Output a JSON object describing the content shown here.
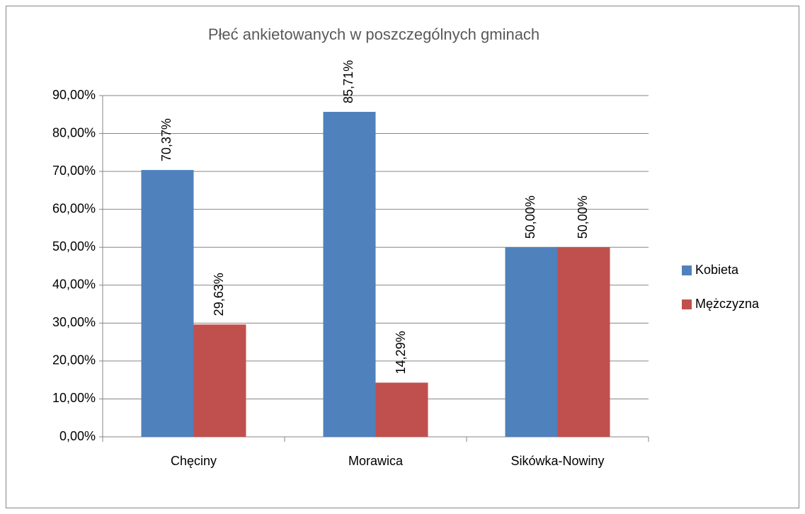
{
  "chart_data": {
    "type": "bar",
    "title": "Płeć ankietowanych w poszczególnych gminach",
    "categories": [
      "Chęciny",
      "Morawica",
      "Sikówka-Nowiny"
    ],
    "series": [
      {
        "name": "Kobieta",
        "color": "#4f81bd",
        "values": [
          70.37,
          85.71,
          50
        ],
        "value_labels": [
          "70,37%",
          "85,71%",
          "50,00%"
        ]
      },
      {
        "name": "Mężczyzna",
        "color": "#c0504d",
        "values": [
          29.63,
          14.29,
          50
        ],
        "value_labels": [
          "29,63%",
          "14,29%",
          "50,00%"
        ]
      }
    ],
    "ylim": [
      0,
      90
    ],
    "yticks": [
      {
        "value": 0,
        "label": "0,00%"
      },
      {
        "value": 10,
        "label": "10,00%"
      },
      {
        "value": 20,
        "label": "20,00%"
      },
      {
        "value": 30,
        "label": "30,00%"
      },
      {
        "value": 40,
        "label": "40,00%"
      },
      {
        "value": 50,
        "label": "50,00%"
      },
      {
        "value": 60,
        "label": "60,00%"
      },
      {
        "value": 70,
        "label": "70,00%"
      },
      {
        "value": 80,
        "label": "80,00%"
      },
      {
        "value": 90,
        "label": "90,00%"
      }
    ],
    "grid": true,
    "legend": "right"
  }
}
